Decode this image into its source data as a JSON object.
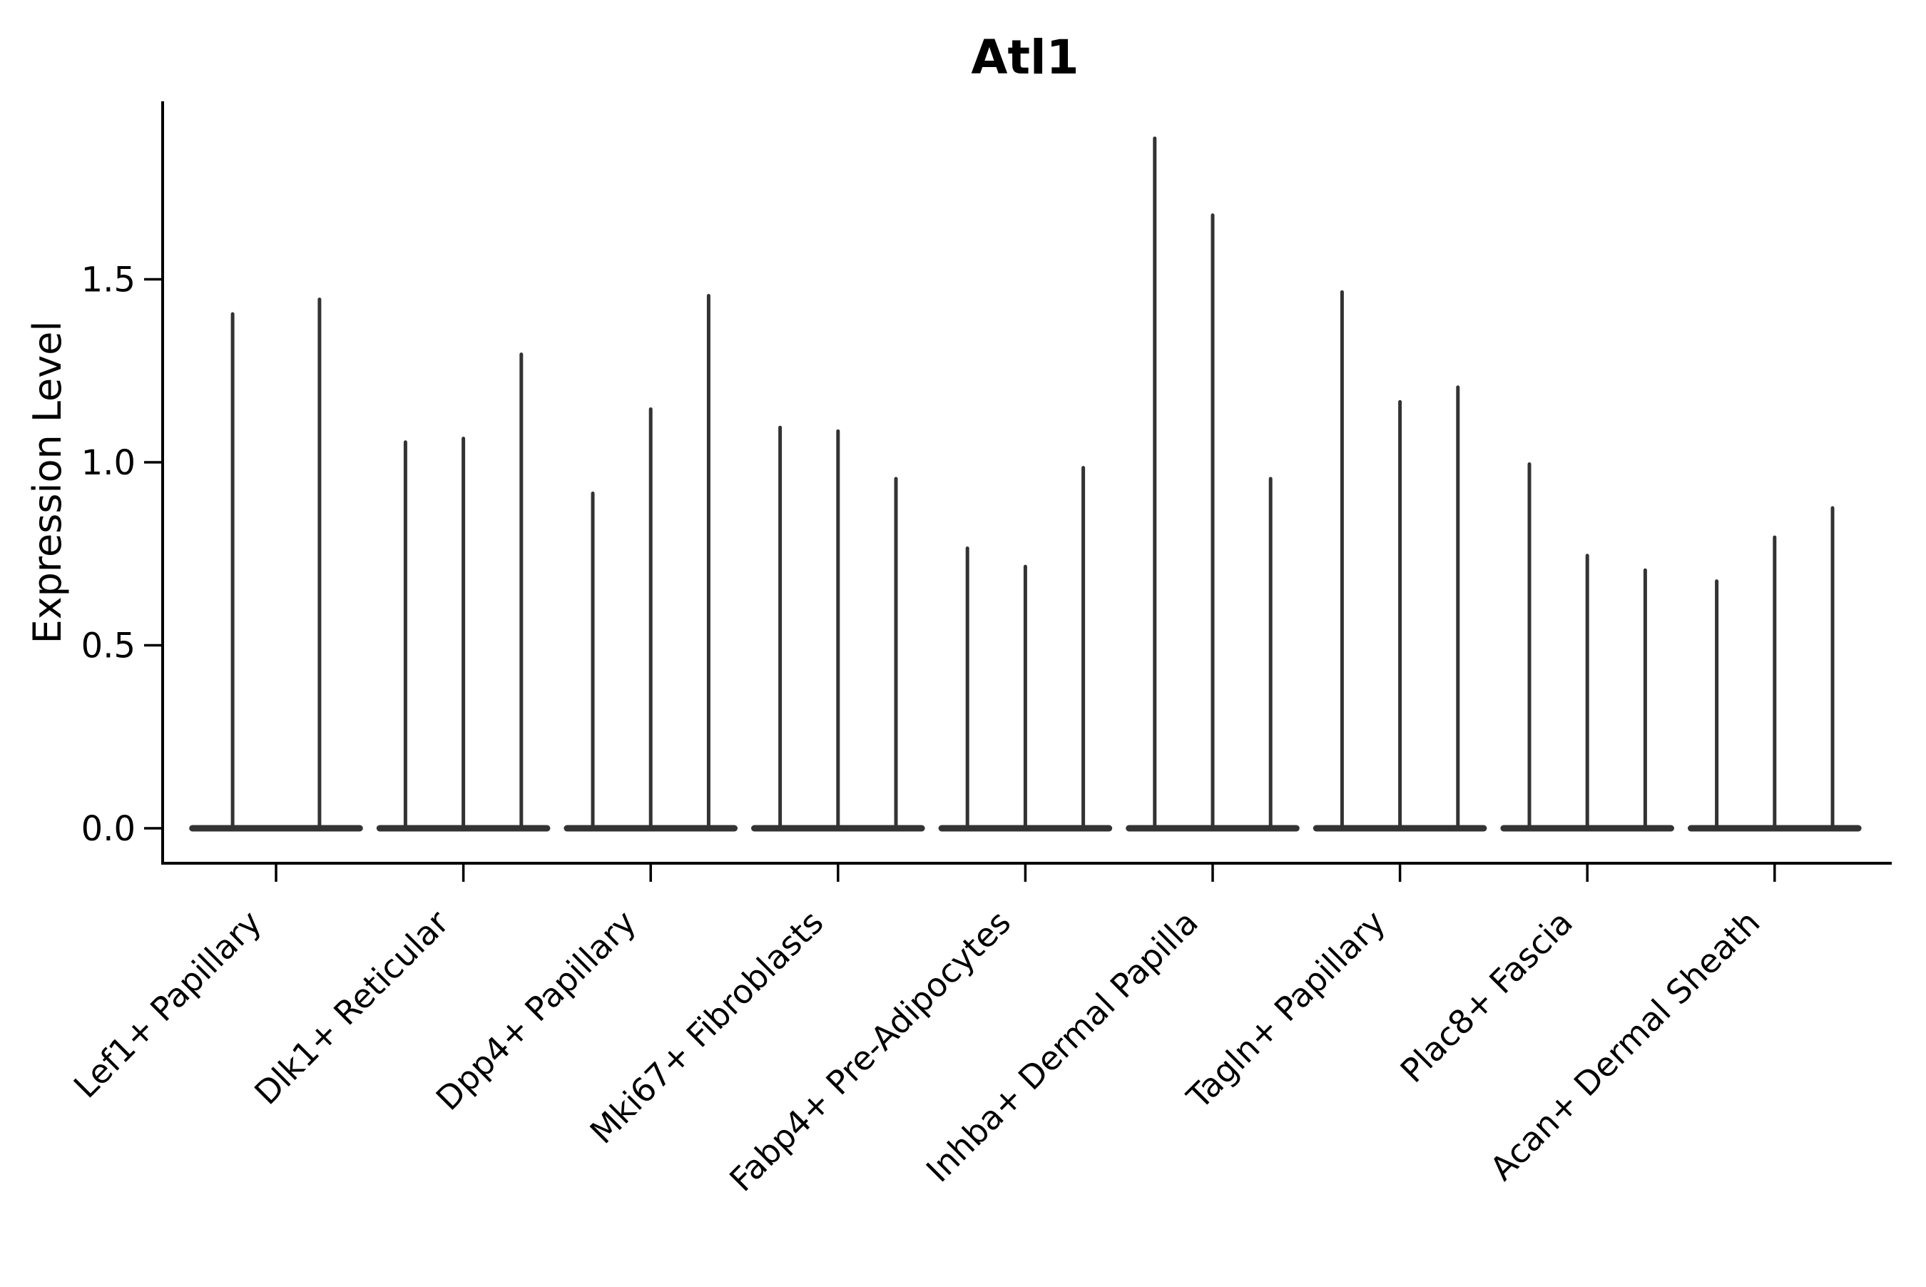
{
  "title": "Atl1",
  "chart_data": {
    "type": "violin",
    "title": "Atl1",
    "xlabel": "",
    "ylabel": "Expression Level",
    "ylim": [
      0,
      1.95
    ],
    "yticks": [
      0,
      0.5,
      1.0,
      1.5
    ],
    "ytick_labels": [
      "0.0",
      "0.5",
      "1.0",
      "1.5"
    ],
    "grid": false,
    "legend": null,
    "violin_style": "needle violins: density mass at 0 (flat base) with a thin vertical spike up to the maximum expression value",
    "violin_color": "#333333",
    "axis_color": "#000000",
    "categories": [
      "Lef1+ Papillary",
      "Dlk1+ Reticular",
      "Dpp4+ Papillary",
      "Mki67+ Fibroblasts",
      "Fabp4+ Pre-Adipocytes",
      "Inhba+ Dermal Papilla",
      "Tagln+ Papillary",
      "Plac8+ Fascia",
      "Acan+ Dermal Sheath"
    ],
    "series": [
      {
        "category": "Lef1+ Papillary",
        "violin_max_values": [
          1.41,
          1.45
        ]
      },
      {
        "category": "Dlk1+ Reticular",
        "violin_max_values": [
          1.06,
          1.07,
          1.3
        ]
      },
      {
        "category": "Dpp4+ Papillary",
        "violin_max_values": [
          0.92,
          1.15,
          1.46
        ]
      },
      {
        "category": "Mki67+ Fibroblasts",
        "violin_max_values": [
          1.1,
          1.09,
          0.96
        ]
      },
      {
        "category": "Fabp4+ Pre-Adipocytes",
        "violin_max_values": [
          0.77,
          0.72,
          0.99
        ]
      },
      {
        "category": "Inhba+ Dermal Papilla",
        "violin_max_values": [
          1.89,
          1.68,
          0.96
        ]
      },
      {
        "category": "Tagln+ Papillary",
        "violin_max_values": [
          1.47,
          1.17,
          1.21
        ]
      },
      {
        "category": "Plac8+ Fascia",
        "violin_max_values": [
          1.0,
          0.75,
          0.71
        ]
      },
      {
        "category": "Acan+ Dermal Sheath",
        "violin_max_values": [
          0.68,
          0.8,
          0.88
        ]
      }
    ]
  }
}
